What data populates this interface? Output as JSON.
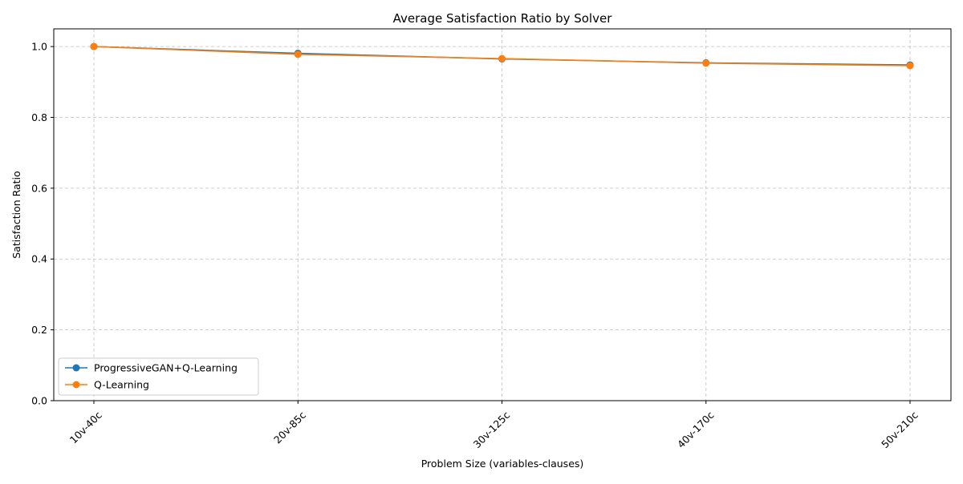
{
  "chart_data": {
    "type": "line",
    "title": "Average Satisfaction Ratio by Solver",
    "xlabel": "Problem Size (variables-clauses)",
    "ylabel": "Satisfaction Ratio",
    "categories": [
      "10v-40c",
      "20v-85c",
      "30v-125c",
      "40v-170c",
      "50v-210c"
    ],
    "ylim": [
      0,
      1.05
    ],
    "yticks": [
      "0.0",
      "0.2",
      "0.4",
      "0.6",
      "0.8",
      "1.0"
    ],
    "grid": true,
    "legend_position": "lower-left",
    "series": [
      {
        "name": "ProgressiveGAN+Q-Learning",
        "color": "#1f77b4",
        "marker": "circle",
        "values": [
          1.0,
          0.981,
          0.965,
          0.954,
          0.948
        ]
      },
      {
        "name": "Q-Learning",
        "color": "#ff7f0e",
        "marker": "circle",
        "values": [
          1.0,
          0.978,
          0.966,
          0.953,
          0.946
        ]
      }
    ]
  }
}
